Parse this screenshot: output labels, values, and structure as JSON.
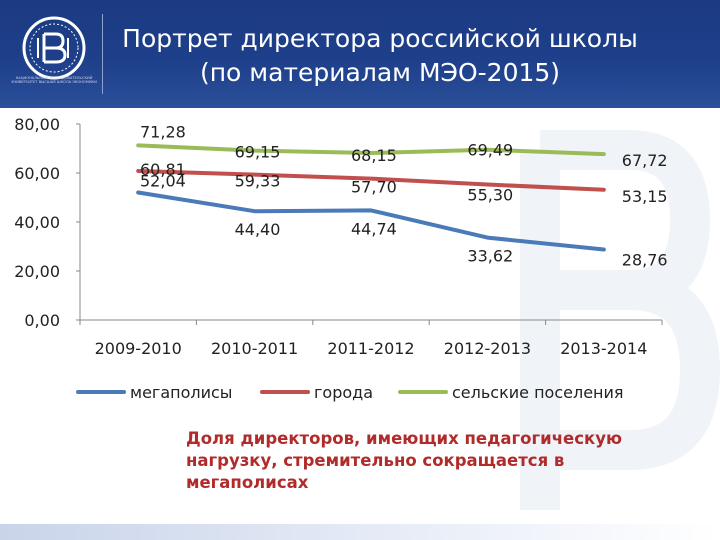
{
  "header": {
    "title_line1": "Портрет директора российской школы",
    "title_line2": "(по материалам МЭО-2015)",
    "logo_subtext": "НАЦИОНАЛЬНЫЙ ИССЛЕДОВАТЕЛЬСКИЙ УНИВЕРСИТЕТ ВЫСШАЯ ШКОЛА ЭКОНОМИКИ",
    "background_color": "#1e3f8a"
  },
  "chart_data": {
    "type": "line",
    "categories": [
      "2009-2010",
      "2010-2011",
      "2011-2012",
      "2012-2013",
      "2013-2014"
    ],
    "yticks": [
      "80,00",
      "60,00",
      "40,00",
      "20,00",
      "0,00"
    ],
    "ylim": [
      0,
      80
    ],
    "grid": false,
    "legend_position": "bottom",
    "series": [
      {
        "name": "мегаполисы",
        "color": "#4a7ab8",
        "values": [
          52.04,
          44.4,
          44.74,
          33.62,
          28.76
        ],
        "labels": [
          "52,04",
          "44,40",
          "44,74",
          "33,62",
          "28,76"
        ]
      },
      {
        "name": "города",
        "color": "#c0504d",
        "values": [
          60.81,
          59.33,
          57.7,
          55.3,
          53.15
        ],
        "labels": [
          "60,81",
          "59,33",
          "57,70",
          "55,30",
          "53,15"
        ]
      },
      {
        "name": "сельские поселения",
        "color": "#9bbb59",
        "values": [
          71.28,
          69.15,
          68.15,
          69.49,
          67.72
        ],
        "labels": [
          "71,28",
          "69,15",
          "68,15",
          "69,49",
          "67,72"
        ]
      }
    ]
  },
  "note": "Доля директоров, имеющих педагогическую нагрузку, стремительно сокращается в мегаполисах"
}
